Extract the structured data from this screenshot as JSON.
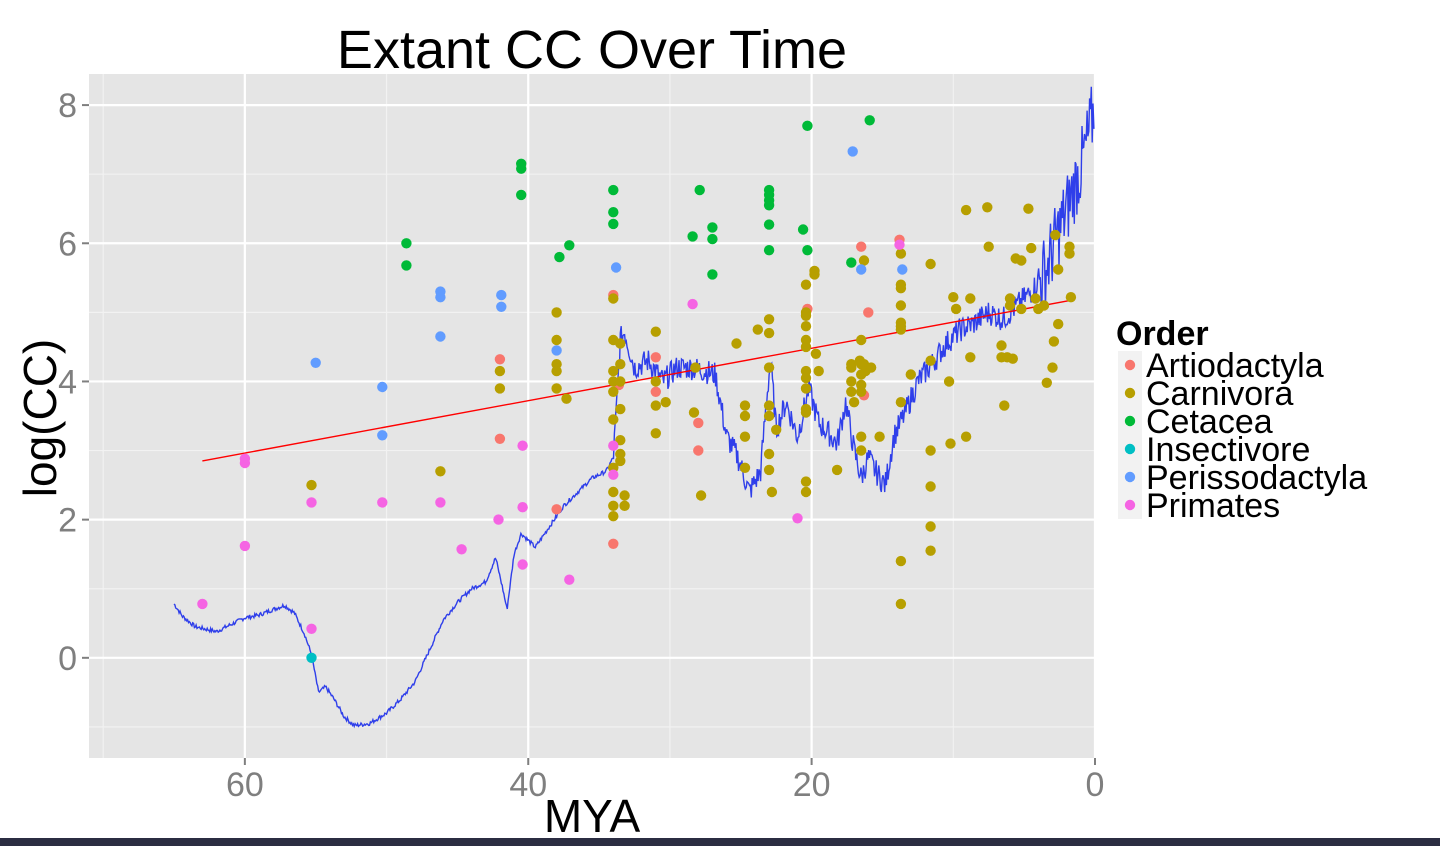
{
  "chart_data": {
    "type": "scatter",
    "title": "Extant CC Over Time",
    "xlabel": "MYA",
    "ylabel": "log(CC)",
    "xlim": [
      71,
      0
    ],
    "ylim": [
      -1.45,
      8.45
    ],
    "x_reversed": true,
    "x_ticks": [
      60,
      40,
      20,
      0
    ],
    "y_ticks": [
      0,
      2,
      4,
      6,
      8
    ],
    "grid": true,
    "legend": {
      "title": "Order",
      "placement": "right",
      "entries": [
        {
          "name": "Artiodactyla",
          "color": "#F8766D"
        },
        {
          "name": "Carnivora",
          "color": "#B79F00"
        },
        {
          "name": "Cetacea",
          "color": "#00BA38"
        },
        {
          "name": "Insectivore",
          "color": "#00BFC4"
        },
        {
          "name": "Perissodactyla",
          "color": "#619CFF"
        },
        {
          "name": "Primates",
          "color": "#F564E3"
        }
      ]
    },
    "series": [
      {
        "name": "Artiodactyla",
        "color": "#F8766D",
        "points": [
          [
            42,
            4.32
          ],
          [
            42,
            3.17
          ],
          [
            38,
            2.15
          ],
          [
            34,
            5.25
          ],
          [
            34,
            1.65
          ],
          [
            33.6,
            3.95
          ],
          [
            31,
            4.35
          ],
          [
            31,
            3.85
          ],
          [
            28,
            3.4
          ],
          [
            28,
            3
          ],
          [
            20.3,
            5.05
          ],
          [
            16.5,
            5.95
          ],
          [
            16,
            5
          ],
          [
            16.3,
            3.8
          ],
          [
            13.8,
            6.05
          ]
        ]
      },
      {
        "name": "Carnivora",
        "color": "#B79F00",
        "points": [
          [
            55.3,
            2.5
          ],
          [
            46.2,
            2.7
          ],
          [
            42,
            4.15
          ],
          [
            42,
            3.9
          ],
          [
            38,
            5.0
          ],
          [
            38,
            4.6
          ],
          [
            38,
            4.25
          ],
          [
            38,
            4.15
          ],
          [
            38,
            3.9
          ],
          [
            37.3,
            3.75
          ],
          [
            34,
            5.2
          ],
          [
            34,
            4.6
          ],
          [
            34,
            4.15
          ],
          [
            34,
            4.0
          ],
          [
            34,
            3.85
          ],
          [
            34,
            3.45
          ],
          [
            34,
            2.75
          ],
          [
            34,
            2.4
          ],
          [
            34,
            2.2
          ],
          [
            34,
            2.05
          ],
          [
            33.5,
            4.55
          ],
          [
            33.5,
            4.25
          ],
          [
            33.5,
            4.0
          ],
          [
            33.5,
            3.6
          ],
          [
            33.5,
            3.15
          ],
          [
            33.5,
            2.95
          ],
          [
            33.5,
            2.85
          ],
          [
            33.2,
            2.35
          ],
          [
            33.2,
            2.2
          ],
          [
            31,
            4.72
          ],
          [
            31,
            4.0
          ],
          [
            31,
            3.65
          ],
          [
            31,
            3.25
          ],
          [
            30.3,
            3.7
          ],
          [
            28.3,
            3.55
          ],
          [
            28.2,
            4.2
          ],
          [
            27.8,
            2.35
          ],
          [
            25.3,
            4.55
          ],
          [
            24.7,
            3.65
          ],
          [
            24.7,
            3.5
          ],
          [
            24.7,
            3.2
          ],
          [
            24.7,
            2.75
          ],
          [
            23.8,
            4.75
          ],
          [
            23,
            4.9
          ],
          [
            23,
            4.7
          ],
          [
            23,
            4.2
          ],
          [
            23,
            3.65
          ],
          [
            23,
            3.5
          ],
          [
            23,
            2.95
          ],
          [
            23,
            2.72
          ],
          [
            22.8,
            2.4
          ],
          [
            22.5,
            3.3
          ],
          [
            20.4,
            5.4
          ],
          [
            20.4,
            5.0
          ],
          [
            20.4,
            4.95
          ],
          [
            20.4,
            4.8
          ],
          [
            20.4,
            4.6
          ],
          [
            20.4,
            4.5
          ],
          [
            20.4,
            4.15
          ],
          [
            20.4,
            4.05
          ],
          [
            20.4,
            3.9
          ],
          [
            20.4,
            3.6
          ],
          [
            20.4,
            3.55
          ],
          [
            20.4,
            2.55
          ],
          [
            20.4,
            2.4
          ],
          [
            19.8,
            5.6
          ],
          [
            19.8,
            5.55
          ],
          [
            19.7,
            4.4
          ],
          [
            19.5,
            4.15
          ],
          [
            17.2,
            4.25
          ],
          [
            17.2,
            4.2
          ],
          [
            17.2,
            4.0
          ],
          [
            17.2,
            3.85
          ],
          [
            17,
            3.7
          ],
          [
            16.6,
            4.3
          ],
          [
            16.5,
            4.6
          ],
          [
            16.5,
            4.25
          ],
          [
            16.5,
            4.1
          ],
          [
            16.5,
            3.95
          ],
          [
            16.5,
            3.85
          ],
          [
            16.5,
            3.2
          ],
          [
            16.5,
            3.0
          ],
          [
            16.3,
            5.75
          ],
          [
            16.3,
            4.25
          ],
          [
            16.2,
            4.15
          ],
          [
            15.8,
            4.2
          ],
          [
            15.2,
            3.2
          ],
          [
            18.2,
            2.72
          ],
          [
            13.7,
            5.85
          ],
          [
            13.7,
            5.4
          ],
          [
            13.7,
            5.35
          ],
          [
            13.7,
            5.1
          ],
          [
            13.7,
            4.85
          ],
          [
            13.7,
            4.8
          ],
          [
            13.7,
            4.75
          ],
          [
            13.7,
            3.7
          ],
          [
            13.7,
            1.4
          ],
          [
            13.7,
            0.78
          ],
          [
            13,
            4.1
          ],
          [
            11.6,
            5.7
          ],
          [
            11.6,
            4.3
          ],
          [
            11.6,
            3.0
          ],
          [
            11.6,
            2.48
          ],
          [
            11.6,
            1.9
          ],
          [
            11.6,
            1.55
          ],
          [
            10.2,
            3.1
          ],
          [
            10.3,
            4.0
          ],
          [
            10,
            5.22
          ],
          [
            9.8,
            5.05
          ],
          [
            9.1,
            6.48
          ],
          [
            9.1,
            3.2
          ],
          [
            8.8,
            5.2
          ],
          [
            8.8,
            4.35
          ],
          [
            7.6,
            6.52
          ],
          [
            7.5,
            5.95
          ],
          [
            6.6,
            4.52
          ],
          [
            6.6,
            4.35
          ],
          [
            6.4,
            3.65
          ],
          [
            6.2,
            4.35
          ],
          [
            6,
            5.2
          ],
          [
            6,
            5.1
          ],
          [
            5.8,
            4.33
          ],
          [
            5.6,
            5.78
          ],
          [
            5.2,
            5.75
          ],
          [
            5.2,
            5.05
          ],
          [
            4.7,
            6.5
          ],
          [
            4.5,
            5.93
          ],
          [
            4.2,
            5.2
          ],
          [
            4.0,
            5.05
          ],
          [
            3.6,
            5.1
          ],
          [
            3.4,
            3.98
          ],
          [
            3.0,
            4.2
          ],
          [
            2.9,
            4.58
          ],
          [
            2.6,
            4.83
          ],
          [
            2.6,
            5.62
          ],
          [
            2.8,
            6.12
          ],
          [
            1.8,
            5.95
          ],
          [
            1.8,
            5.85
          ],
          [
            1.7,
            5.22
          ]
        ]
      },
      {
        "name": "Cetacea",
        "color": "#00BA38",
        "points": [
          [
            48.6,
            6.0
          ],
          [
            48.6,
            5.68
          ],
          [
            40.5,
            7.15
          ],
          [
            40.5,
            7.08
          ],
          [
            40.5,
            6.7
          ],
          [
            37.8,
            5.8
          ],
          [
            37.1,
            5.97
          ],
          [
            34,
            6.77
          ],
          [
            34,
            6.45
          ],
          [
            34,
            6.28
          ],
          [
            28.4,
            6.1
          ],
          [
            27.9,
            6.77
          ],
          [
            27,
            6.23
          ],
          [
            27,
            6.06
          ],
          [
            27,
            5.55
          ],
          [
            23,
            6.77
          ],
          [
            23,
            6.7
          ],
          [
            23,
            6.62
          ],
          [
            23,
            6.55
          ],
          [
            23,
            6.27
          ],
          [
            23,
            5.9
          ],
          [
            20.6,
            6.2
          ],
          [
            20.3,
            7.7
          ],
          [
            20.3,
            5.9
          ],
          [
            17.2,
            5.72
          ],
          [
            15.9,
            7.78
          ]
        ]
      },
      {
        "name": "Insectivore",
        "color": "#00BFC4",
        "points": [
          [
            55.3,
            0.0
          ]
        ]
      },
      {
        "name": "Perissodactyla",
        "color": "#619CFF",
        "points": [
          [
            55,
            4.27
          ],
          [
            50.3,
            3.92
          ],
          [
            50.3,
            3.22
          ],
          [
            46.2,
            5.3
          ],
          [
            46.2,
            5.22
          ],
          [
            46.2,
            4.65
          ],
          [
            41.9,
            5.25
          ],
          [
            41.9,
            5.08
          ],
          [
            38,
            4.45
          ],
          [
            33.8,
            5.65
          ],
          [
            17.1,
            7.33
          ],
          [
            16.5,
            5.62
          ],
          [
            13.6,
            5.62
          ]
        ]
      },
      {
        "name": "Primates",
        "color": "#F564E3",
        "points": [
          [
            63,
            0.78
          ],
          [
            60,
            2.88
          ],
          [
            60,
            2.82
          ],
          [
            60,
            1.62
          ],
          [
            55.3,
            2.25
          ],
          [
            55.3,
            0.42
          ],
          [
            50.3,
            2.25
          ],
          [
            46.2,
            2.25
          ],
          [
            44.7,
            1.57
          ],
          [
            42.1,
            2.0
          ],
          [
            40.4,
            3.07
          ],
          [
            40.4,
            2.18
          ],
          [
            40.4,
            1.35
          ],
          [
            37.1,
            1.13
          ],
          [
            34,
            3.07
          ],
          [
            34,
            2.65
          ],
          [
            28.4,
            5.12
          ],
          [
            21,
            2.02
          ],
          [
            13.8,
            5.98
          ]
        ]
      }
    ],
    "lines": [
      {
        "name": "",
        "color": "#FF0000",
        "points": [
          [
            63,
            2.85
          ],
          [
            1.8,
            5.17
          ]
        ]
      }
    ]
  }
}
